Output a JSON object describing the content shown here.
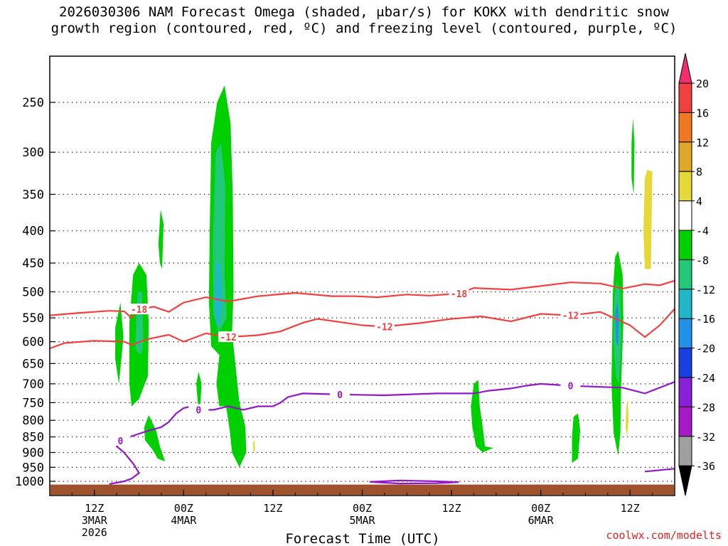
{
  "title_lines": [
    "2026030306 NAM Forecast Omega (shaded, μbar/s) for KOKX with dendritic snow",
    "growth region (contoured, red, ºC) and freezing level (contoured, purple, ºC)"
  ],
  "watermark": "coolwx.com/modelts",
  "chart_data": {
    "type": "contour",
    "x_axis": {
      "label": "Forecast Time (UTC)",
      "ticks": [
        {
          "lines": [
            "12Z",
            "3MAR",
            "2026"
          ],
          "hour": 6
        },
        {
          "lines": [
            "00Z",
            "4MAR"
          ],
          "hour": 18
        },
        {
          "lines": [
            "12Z"
          ],
          "hour": 30
        },
        {
          "lines": [
            "00Z",
            "5MAR"
          ],
          "hour": 42
        },
        {
          "lines": [
            "12Z"
          ],
          "hour": 54
        },
        {
          "lines": [
            "00Z",
            "6MAR"
          ],
          "hour": 66
        },
        {
          "lines": [
            "12Z"
          ],
          "hour": 78
        }
      ],
      "range_hours": [
        0,
        84
      ]
    },
    "y_axis": {
      "ticks": [
        250,
        300,
        350,
        400,
        450,
        500,
        550,
        600,
        650,
        700,
        750,
        800,
        850,
        900,
        950,
        1000
      ],
      "range_hpa": [
        1030,
        200
      ],
      "scale": "log-pressure"
    },
    "grid": "dotted horizontal at each pressure level",
    "colorbar": {
      "labels": [
        "20",
        "16",
        "12",
        "8",
        "4",
        "-4",
        "-8",
        "-12",
        "-16",
        "-20",
        "-24",
        "-28",
        "-32",
        "-36"
      ],
      "colors": [
        "#f0306e",
        "#f04040",
        "#f07820",
        "#e0a828",
        "#e6d838",
        "#ffffff",
        "#00d000",
        "#20c878",
        "#20b8c8",
        "#2090e8",
        "#1840e0",
        "#8820d8",
        "#a818c8",
        "#a0a0a0",
        "#000000"
      ]
    },
    "dendritic_contours": [
      {
        "value": -18,
        "label": "-18",
        "points": [
          [
            0,
            545
          ],
          [
            4,
            540
          ],
          [
            8,
            536
          ],
          [
            10,
            537
          ],
          [
            11,
            550
          ],
          [
            12,
            533
          ],
          [
            14,
            528
          ],
          [
            16,
            538
          ],
          [
            18,
            520
          ],
          [
            21,
            510
          ],
          [
            24,
            518
          ],
          [
            28,
            508
          ],
          [
            33,
            502
          ],
          [
            38,
            508
          ],
          [
            41,
            508
          ],
          [
            44,
            510
          ],
          [
            48,
            505
          ],
          [
            51,
            507
          ],
          [
            55,
            503
          ],
          [
            57,
            493
          ],
          [
            62,
            496
          ],
          [
            70,
            483
          ],
          [
            74,
            485
          ],
          [
            77,
            494
          ],
          [
            80,
            486
          ],
          [
            82,
            488
          ],
          [
            84,
            480
          ]
        ]
      },
      {
        "value": -12,
        "label": "-12",
        "points": [
          [
            0,
            615
          ],
          [
            2,
            603
          ],
          [
            6,
            598
          ],
          [
            10,
            600
          ],
          [
            11,
            607
          ],
          [
            13,
            595
          ],
          [
            16,
            585
          ],
          [
            18,
            600
          ],
          [
            21,
            582
          ],
          [
            24,
            590
          ],
          [
            28,
            586
          ],
          [
            31,
            578
          ],
          [
            34,
            560
          ],
          [
            36,
            552
          ],
          [
            42,
            565
          ],
          [
            45,
            568
          ],
          [
            50,
            560
          ],
          [
            54,
            552
          ],
          [
            58,
            547
          ],
          [
            62,
            557
          ],
          [
            66,
            542
          ],
          [
            70,
            545
          ],
          [
            74,
            538
          ],
          [
            78,
            565
          ],
          [
            80,
            590
          ],
          [
            82,
            565
          ],
          [
            84,
            532
          ]
        ]
      }
    ],
    "freezing_level_contours": [
      {
        "value": 0,
        "label": "0",
        "points": [
          [
            8,
            1010
          ],
          [
            10,
            1000
          ],
          [
            11,
            990
          ],
          [
            12,
            970
          ],
          [
            11.3,
            940
          ],
          [
            10,
            900
          ],
          [
            9,
            880
          ],
          [
            9.5,
            862
          ],
          [
            11,
            848
          ],
          [
            13,
            833
          ],
          [
            15,
            820
          ],
          [
            16,
            805
          ],
          [
            17,
            780
          ],
          [
            18,
            765
          ],
          [
            19,
            760
          ],
          [
            20,
            770
          ],
          [
            22,
            770
          ],
          [
            24,
            760
          ],
          [
            26,
            770
          ],
          [
            28,
            760
          ],
          [
            30,
            760
          ],
          [
            31,
            750
          ],
          [
            32,
            735
          ],
          [
            34,
            725
          ],
          [
            39,
            728
          ],
          [
            45,
            730
          ],
          [
            52,
            725
          ],
          [
            57,
            725
          ],
          [
            59,
            718
          ],
          [
            62,
            712
          ],
          [
            64,
            705
          ],
          [
            66,
            700
          ],
          [
            70,
            705
          ],
          [
            74,
            708
          ],
          [
            77,
            710
          ],
          [
            80,
            725
          ],
          [
            84,
            695
          ]
        ],
        "label_hours": [
          21,
          41,
          69,
          9.5
        ]
      },
      {
        "value": 0,
        "label": "",
        "points": [
          [
            43,
            1002
          ],
          [
            47,
            997
          ],
          [
            52,
            1000
          ],
          [
            55,
            1003
          ],
          [
            52,
            1007
          ],
          [
            47,
            1008
          ],
          [
            43,
            1002
          ]
        ]
      },
      {
        "value": 0,
        "label": "",
        "points": [
          [
            80,
            965
          ],
          [
            84,
            955
          ]
        ]
      }
    ],
    "omega_regions": [
      {
        "shade": "-4 to -8",
        "color": "#00d000",
        "outline": [
          [
            8.8,
            570
          ],
          [
            9.5,
            520
          ],
          [
            9.9,
            590
          ],
          [
            9.3,
            700
          ],
          [
            8.8,
            640
          ]
        ]
      },
      {
        "shade": "-4 to -8",
        "color": "#00d000",
        "outline": [
          [
            10.7,
            560
          ],
          [
            11.2,
            470
          ],
          [
            12,
            450
          ],
          [
            13,
            470
          ],
          [
            13.3,
            560
          ],
          [
            13.2,
            680
          ],
          [
            12,
            740
          ],
          [
            11,
            760
          ],
          [
            10.7,
            700
          ]
        ]
      },
      {
        "shade": "-8 to -12",
        "color": "#20c878",
        "outline": [
          [
            11.5,
            600
          ],
          [
            11.8,
            500
          ],
          [
            12.4,
            500
          ],
          [
            12.6,
            600
          ],
          [
            12.3,
            630
          ],
          [
            11.6,
            620
          ]
        ]
      },
      {
        "shade": "-4 to -8",
        "color": "#00d000",
        "outline": [
          [
            12.7,
            820
          ],
          [
            13.3,
            785
          ],
          [
            14.3,
            830
          ],
          [
            14.8,
            880
          ],
          [
            15.5,
            930
          ],
          [
            14.5,
            920
          ],
          [
            13.8,
            890
          ],
          [
            12.8,
            860
          ]
        ]
      },
      {
        "shade": "-4 to -8",
        "color": "#00d000",
        "outline": [
          [
            14.6,
            420
          ],
          [
            14.9,
            370
          ],
          [
            15.3,
            390
          ],
          [
            15.1,
            460
          ],
          [
            14.8,
            450
          ]
        ]
      },
      {
        "shade": "-4 to -8",
        "color": "#00d000",
        "outline": [
          [
            19.7,
            700
          ],
          [
            20,
            670
          ],
          [
            20.4,
            700
          ],
          [
            20.2,
            770
          ],
          [
            19.9,
            750
          ]
        ]
      },
      {
        "shade": "-4 to -8",
        "color": "#00d000",
        "outline": [
          [
            21.5,
            400
          ],
          [
            21.7,
            290
          ],
          [
            22.5,
            250
          ],
          [
            23.5,
            235
          ],
          [
            24.3,
            270
          ],
          [
            24.6,
            350
          ],
          [
            24.7,
            500
          ],
          [
            24.5,
            580
          ],
          [
            25,
            660
          ],
          [
            25.5,
            750
          ],
          [
            26.3,
            820
          ],
          [
            26.4,
            900
          ],
          [
            25.5,
            950
          ],
          [
            24.5,
            900
          ],
          [
            24.2,
            830
          ],
          [
            23.7,
            760
          ],
          [
            22.8,
            760
          ],
          [
            22.4,
            700
          ],
          [
            22.8,
            630
          ],
          [
            21.7,
            610
          ],
          [
            21.4,
            520
          ]
        ]
      },
      {
        "shade": "-8 to -12",
        "color": "#20c878",
        "outline": [
          [
            21.9,
            420
          ],
          [
            22.3,
            300
          ],
          [
            23,
            290
          ],
          [
            23.6,
            340
          ],
          [
            23.5,
            470
          ],
          [
            23.8,
            550
          ],
          [
            22.7,
            580
          ],
          [
            22,
            540
          ]
        ]
      },
      {
        "shade": "-12 to -16",
        "color": "#20b8c8",
        "outline": [
          [
            22.1,
            520
          ],
          [
            22.4,
            450
          ],
          [
            22.9,
            450
          ],
          [
            23.2,
            520
          ],
          [
            22.8,
            570
          ],
          [
            22.3,
            560
          ]
        ]
      },
      {
        "shade": "-4 to -8",
        "color": "#00d000",
        "outline": [
          [
            56.6,
            760
          ],
          [
            57,
            700
          ],
          [
            57.6,
            690
          ],
          [
            57.8,
            760
          ],
          [
            58.2,
            820
          ],
          [
            58.5,
            880
          ],
          [
            59.6,
            885
          ],
          [
            58.2,
            900
          ],
          [
            57.3,
            880
          ],
          [
            56.8,
            820
          ]
        ]
      },
      {
        "shade": "-4 to -8",
        "color": "#00d000",
        "outline": [
          [
            70.2,
            850
          ],
          [
            70.4,
            790
          ],
          [
            71,
            780
          ],
          [
            71.3,
            830
          ],
          [
            71,
            920
          ],
          [
            70.2,
            935
          ]
        ]
      },
      {
        "shade": "-4 to -8",
        "color": "#00d000",
        "outline": [
          [
            75.7,
            500
          ],
          [
            76,
            440
          ],
          [
            76.4,
            430
          ],
          [
            77,
            470
          ],
          [
            77.1,
            560
          ],
          [
            76.8,
            700
          ],
          [
            76.7,
            840
          ],
          [
            76.4,
            910
          ],
          [
            75.8,
            840
          ],
          [
            75.5,
            700
          ]
        ]
      },
      {
        "shade": "-8 to -12",
        "color": "#20c878",
        "outline": [
          [
            75.9,
            510
          ],
          [
            76.2,
            480
          ],
          [
            76.7,
            500
          ],
          [
            76.8,
            600
          ],
          [
            76.5,
            700
          ],
          [
            76.1,
            680
          ],
          [
            75.8,
            600
          ]
        ]
      },
      {
        "shade": "-16 to -20",
        "color": "#2090e8",
        "outline": [
          [
            76,
            540
          ],
          [
            76.3,
            520
          ],
          [
            76.5,
            550
          ],
          [
            76.4,
            610
          ],
          [
            76.1,
            600
          ]
        ]
      },
      {
        "shade": "-4 to -8",
        "color": "#00d000",
        "outline": [
          [
            78.2,
            290
          ],
          [
            78.4,
            265
          ],
          [
            78.6,
            290
          ],
          [
            78.5,
            350
          ],
          [
            78.2,
            330
          ]
        ]
      },
      {
        "shade": "4 to 8",
        "color": "#e6d838",
        "outline": [
          [
            80,
            330
          ],
          [
            80.3,
            320
          ],
          [
            81,
            322
          ],
          [
            80.9,
            380
          ],
          [
            80.8,
            460
          ],
          [
            80,
            460
          ],
          [
            79.8,
            400
          ]
        ]
      },
      {
        "shade": "4 to 8",
        "color": "#e6d838",
        "outline": [
          [
            27.3,
            870
          ],
          [
            27.5,
            860
          ],
          [
            27.6,
            890
          ],
          [
            27.4,
            900
          ]
        ]
      },
      {
        "shade": "4 to 8",
        "color": "#e6d838",
        "outline": [
          [
            77.5,
            760
          ],
          [
            77.7,
            740
          ],
          [
            77.8,
            800
          ],
          [
            77.6,
            850
          ],
          [
            77.4,
            820
          ]
        ]
      }
    ]
  }
}
